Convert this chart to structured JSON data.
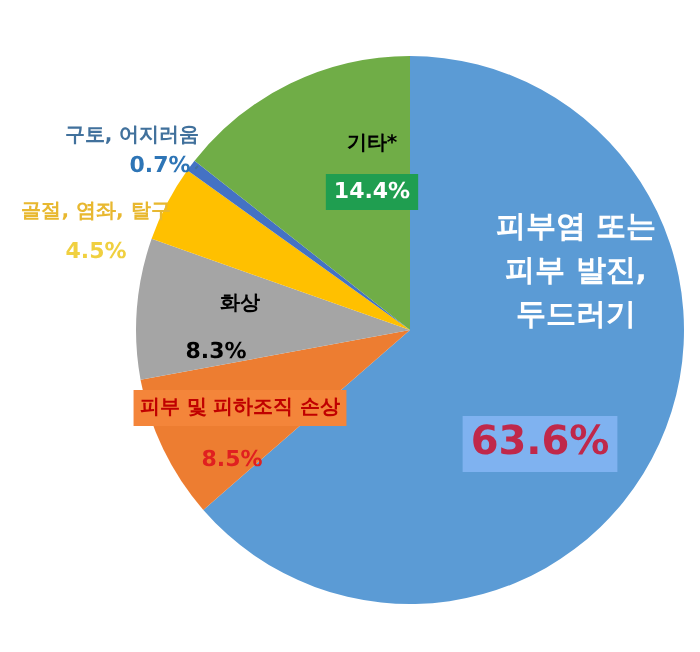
{
  "chart_data": {
    "type": "pie",
    "categories": [
      "피부염 또는 피부 발진, 두드러기",
      "피부 및 피하조직 손상",
      "화상",
      "골절, 염좌, 탈구",
      "구토, 어지러움",
      "기타*"
    ],
    "values": [
      63.6,
      8.5,
      8.3,
      4.5,
      0.7,
      14.4
    ],
    "value_labels": [
      "63.6%",
      "8.5%",
      "8.3%",
      "4.5%",
      "0.7%",
      "14.4%"
    ],
    "colors": [
      "#5b9bd5",
      "#ed7d31",
      "#a5a5a5",
      "#ffc000",
      "#4472c4",
      "#70ad47"
    ],
    "legend": false
  }
}
